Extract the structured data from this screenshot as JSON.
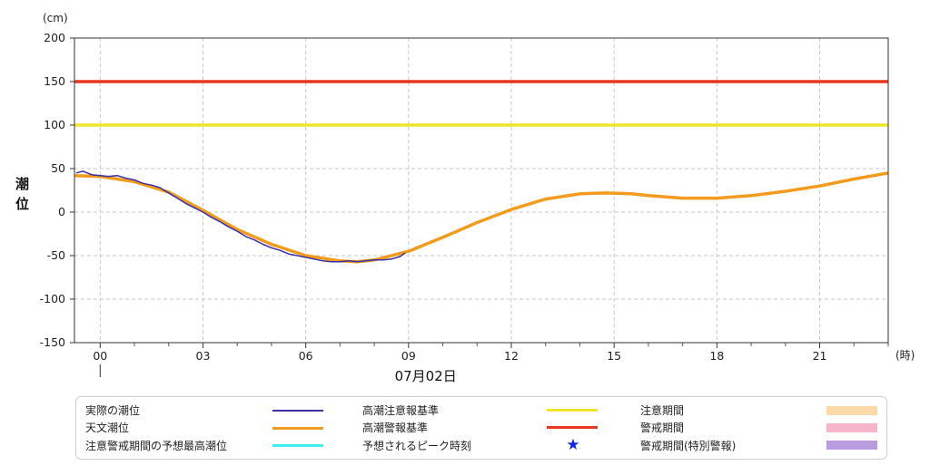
{
  "chart_data": {
    "type": "line",
    "unit_label": "(cm)",
    "ylabel_lines": [
      "潮",
      "位"
    ],
    "x_unit_label": "(時)",
    "date_label": "07月02日",
    "ylim": [
      -150,
      200
    ],
    "y_ticks": [
      "200",
      "150",
      "100",
      "50",
      "0",
      "-50",
      "-100",
      "-150"
    ],
    "y_tick_values": [
      200,
      150,
      100,
      50,
      0,
      -50,
      -100,
      -150
    ],
    "x_range_hours": [
      -0.75,
      23
    ],
    "x_tick_labels": [
      "00",
      "03",
      "06",
      "09",
      "12",
      "15",
      "18",
      "21"
    ],
    "x_tick_hours": [
      0,
      3,
      6,
      9,
      12,
      15,
      18,
      21
    ],
    "grid": true,
    "series": [
      {
        "name": "実際の潮位",
        "color": "#3a2fa5",
        "x": [
          -0.7,
          -0.5,
          -0.25,
          0,
          0.25,
          0.5,
          0.75,
          1,
          1.25,
          1.5,
          1.75,
          2,
          2.25,
          2.5,
          2.75,
          3,
          3.25,
          3.5,
          3.75,
          4,
          4.25,
          4.5,
          4.75,
          5,
          5.25,
          5.5,
          5.75,
          6,
          6.25,
          6.5,
          6.75,
          7,
          7.25,
          7.5,
          7.75,
          8,
          8.25,
          8.5,
          8.75,
          8.9
        ],
        "y": [
          45,
          47,
          43,
          42,
          41,
          42,
          39,
          37,
          33,
          31,
          28,
          22,
          16,
          10,
          5,
          0,
          -6,
          -11,
          -17,
          -22,
          -28,
          -32,
          -37,
          -41,
          -44,
          -48,
          -50,
          -52,
          -54,
          -56,
          -57,
          -57,
          -56,
          -57,
          -56,
          -55,
          -55,
          -54,
          -51,
          -47
        ]
      },
      {
        "name": "天文潮位",
        "color": "#f29b1e",
        "x": [
          -0.75,
          0,
          1,
          2,
          3,
          4,
          5,
          6,
          7,
          7.5,
          8,
          9,
          10,
          11,
          12,
          13,
          14,
          14.75,
          15.5,
          16,
          17,
          18,
          19,
          20,
          21,
          22,
          23
        ],
        "y": [
          42,
          41,
          35,
          23,
          2,
          -20,
          -37,
          -50,
          -56,
          -57,
          -55,
          -45,
          -29,
          -12,
          3,
          15,
          21,
          22,
          21,
          19,
          16,
          16,
          19,
          24,
          30,
          38,
          45
        ]
      },
      {
        "name": "高潮注意報基準",
        "color": "#f0e52a",
        "value": 100
      },
      {
        "name": "高潮警報基準",
        "color": "#e8361e",
        "value": 150
      }
    ]
  },
  "legend": [
    {
      "label": "実際の潮位",
      "color": "#3a2fa5",
      "symbol": "thin-line"
    },
    {
      "label": "高潮注意報基準",
      "color": "#f0e52a",
      "symbol": "thick-line"
    },
    {
      "label": "注意期間",
      "color": "#fcd9a8",
      "symbol": "rect"
    },
    {
      "label": "天文潮位",
      "color": "#f29b1e",
      "symbol": "thick-line"
    },
    {
      "label": "高潮警報基準",
      "color": "#e8361e",
      "symbol": "thick-line"
    },
    {
      "label": "警戒期間",
      "color": "#f8b4cb",
      "symbol": "rect"
    },
    {
      "label": "注意警戒期間の予想最高潮位",
      "color": "#3ff0f0",
      "symbol": "thick-line"
    },
    {
      "label": "予想されるピーク時刻",
      "color": "#1228d8",
      "symbol": "star"
    },
    {
      "label": "警戒期間(特別警報)",
      "color": "#b99be0",
      "symbol": "rect"
    }
  ]
}
